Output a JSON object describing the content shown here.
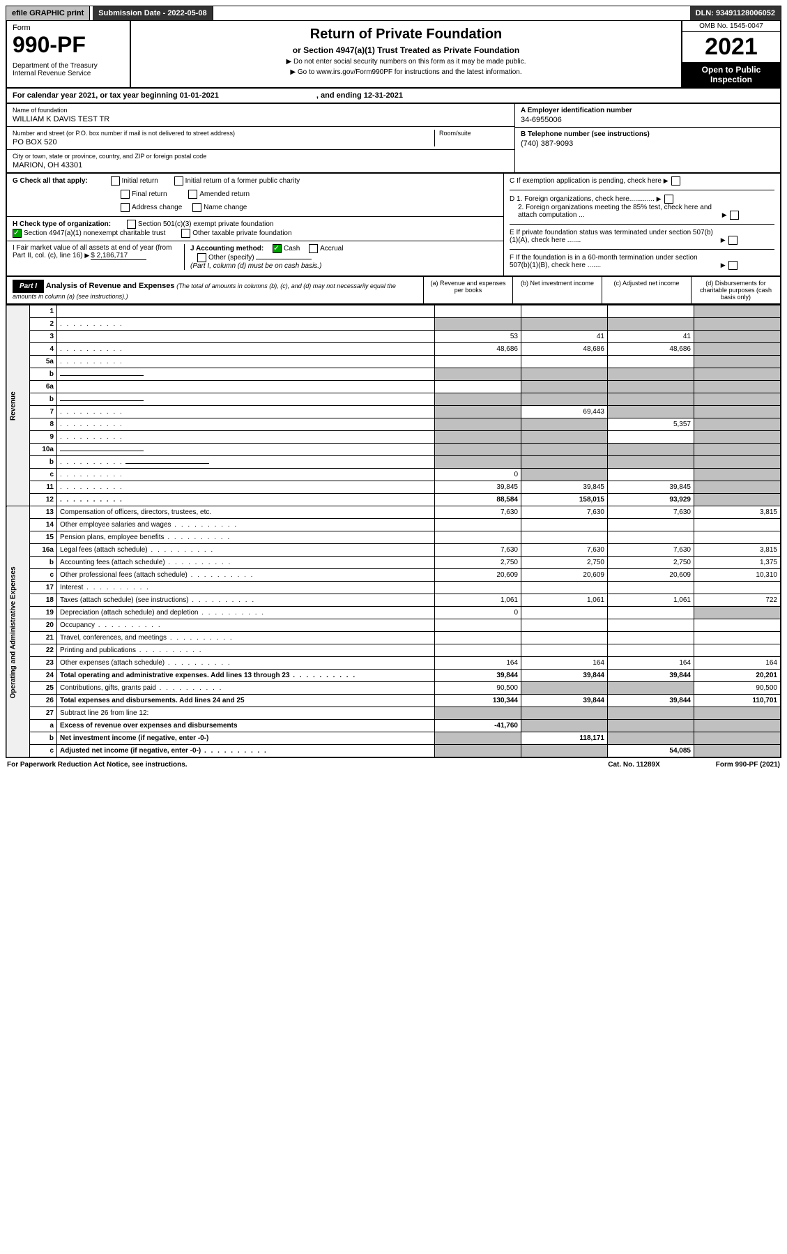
{
  "topbar": {
    "efile": "efile GRAPHIC print",
    "sub": "Submission Date - 2022-05-08",
    "dln": "DLN: 93491128006052"
  },
  "hdr": {
    "form_word": "Form",
    "form_no": "990-PF",
    "dept": "Department of the Treasury",
    "irs": "Internal Revenue Service",
    "title": "Return of Private Foundation",
    "sub": "or Section 4947(a)(1) Trust Treated as Private Foundation",
    "note1": "▶ Do not enter social security numbers on this form as it may be made public.",
    "note2": "▶ Go to www.irs.gov/Form990PF for instructions and the latest information.",
    "omb": "OMB No. 1545-0047",
    "year": "2021",
    "open": "Open to Public Inspection"
  },
  "cal": {
    "pre": "For calendar year 2021, or tax year beginning 01-01-2021",
    "end": ", and ending 12-31-2021"
  },
  "info": {
    "name_lbl": "Name of foundation",
    "name": "WILLIAM K DAVIS TEST TR",
    "addr_lbl": "Number and street (or P.O. box number if mail is not delivered to street address)",
    "room_lbl": "Room/suite",
    "addr": "PO BOX 520",
    "city_lbl": "City or town, state or province, country, and ZIP or foreign postal code",
    "city": "MARION, OH  43301",
    "a_lbl": "A Employer identification number",
    "a": "34-6955006",
    "b_lbl": "B Telephone number (see instructions)",
    "b": "(740) 387-9093",
    "c": "C If exemption application is pending, check here",
    "d1": "D 1. Foreign organizations, check here.............",
    "d2": "2. Foreign organizations meeting the 85% test, check here and attach computation ...",
    "e": "E  If private foundation status was terminated under section 507(b)(1)(A), check here .......",
    "f": "F  If the foundation is in a 60-month termination under section 507(b)(1)(B), check here ......."
  },
  "g": {
    "lbl": "G Check all that apply:",
    "opts": [
      "Initial return",
      "Initial return of a former public charity",
      "Final return",
      "Amended return",
      "Address change",
      "Name change"
    ],
    "h": "H Check type of organization:",
    "h1": "Section 501(c)(3) exempt private foundation",
    "h2": "Section 4947(a)(1) nonexempt charitable trust",
    "h3": "Other taxable private foundation",
    "i": "I Fair market value of all assets at end of year (from Part II, col. (c), line 16)",
    "i_val": "$  2,186,717",
    "j": "J Accounting method:",
    "j1": "Cash",
    "j2": "Accrual",
    "j3": "Other (specify)",
    "j_note": "(Part I, column (d) must be on cash basis.)"
  },
  "part1": {
    "hdr": "Part I",
    "title": "Analysis of Revenue and Expenses",
    "sub": "(The total of amounts in columns (b), (c), and (d) may not necessarily equal the amounts in column (a) (see instructions).)",
    "cols": {
      "a": "(a) Revenue and expenses per books",
      "b": "(b) Net investment income",
      "c": "(c) Adjusted net income",
      "d": "(d) Disbursements for charitable purposes (cash basis only)"
    }
  },
  "sections": {
    "revenue": "Revenue",
    "expenses": "Operating and Administrative Expenses"
  },
  "rows": [
    {
      "s": "r",
      "n": "1",
      "d": "",
      "a": "",
      "b": "",
      "c": "",
      "dg": true
    },
    {
      "s": "r",
      "n": "2",
      "d": "",
      "dots": true,
      "a": "",
      "b": "",
      "c": "",
      "bg": true,
      "cg": true,
      "dg": true,
      "ag": true
    },
    {
      "s": "r",
      "n": "3",
      "d": "",
      "a": "53",
      "b": "41",
      "c": "41",
      "dg": true
    },
    {
      "s": "r",
      "n": "4",
      "d": "",
      "dots": true,
      "a": "48,686",
      "b": "48,686",
      "c": "48,686",
      "dg": true
    },
    {
      "s": "r",
      "n": "5a",
      "d": "",
      "dots": true,
      "a": "",
      "b": "",
      "c": "",
      "dg": true
    },
    {
      "s": "r",
      "n": "b",
      "d": "",
      "inline": true,
      "a": "",
      "b": "",
      "c": "",
      "ag": true,
      "bg": true,
      "cg": true,
      "dg": true
    },
    {
      "s": "r",
      "n": "6a",
      "d": "",
      "a": "",
      "b": "",
      "c": "",
      "bg": true,
      "cg": true,
      "dg": true
    },
    {
      "s": "r",
      "n": "b",
      "d": "",
      "inline": true,
      "a": "",
      "b": "",
      "c": "",
      "ag": true,
      "bg": true,
      "cg": true,
      "dg": true
    },
    {
      "s": "r",
      "n": "7",
      "d": "",
      "dots": true,
      "a": "",
      "b": "69,443",
      "c": "",
      "ag": true,
      "cg": true,
      "dg": true
    },
    {
      "s": "r",
      "n": "8",
      "d": "",
      "dots": true,
      "a": "",
      "b": "",
      "c": "5,357",
      "ag": true,
      "bg": true,
      "dg": true
    },
    {
      "s": "r",
      "n": "9",
      "d": "",
      "dots": true,
      "a": "",
      "b": "",
      "c": "",
      "ag": true,
      "bg": true,
      "dg": true
    },
    {
      "s": "r",
      "n": "10a",
      "d": "",
      "inline": true,
      "a": "",
      "b": "",
      "c": "",
      "ag": true,
      "bg": true,
      "cg": true,
      "dg": true
    },
    {
      "s": "r",
      "n": "b",
      "d": "",
      "dots": true,
      "inline": true,
      "a": "",
      "b": "",
      "c": "",
      "ag": true,
      "bg": true,
      "cg": true,
      "dg": true
    },
    {
      "s": "r",
      "n": "c",
      "d": "",
      "dots": true,
      "a": "0",
      "b": "",
      "c": "",
      "bg": true,
      "dg": true
    },
    {
      "s": "r",
      "n": "11",
      "d": "",
      "dots": true,
      "a": "39,845",
      "b": "39,845",
      "c": "39,845",
      "dg": true
    },
    {
      "s": "r",
      "n": "12",
      "d": "",
      "dots": true,
      "bold": true,
      "a": "88,584",
      "b": "158,015",
      "c": "93,929",
      "dg": true
    },
    {
      "s": "e",
      "n": "13",
      "d": "Compensation of officers, directors, trustees, etc.",
      "a": "7,630",
      "b": "7,630",
      "c": "7,630",
      "dv": "3,815"
    },
    {
      "s": "e",
      "n": "14",
      "d": "Other employee salaries and wages",
      "dots": true,
      "a": "",
      "b": "",
      "c": "",
      "dv": ""
    },
    {
      "s": "e",
      "n": "15",
      "d": "Pension plans, employee benefits",
      "dots": true,
      "a": "",
      "b": "",
      "c": "",
      "dv": ""
    },
    {
      "s": "e",
      "n": "16a",
      "d": "Legal fees (attach schedule)",
      "dots": true,
      "a": "7,630",
      "b": "7,630",
      "c": "7,630",
      "dv": "3,815"
    },
    {
      "s": "e",
      "n": "b",
      "d": "Accounting fees (attach schedule)",
      "dots": true,
      "a": "2,750",
      "b": "2,750",
      "c": "2,750",
      "dv": "1,375"
    },
    {
      "s": "e",
      "n": "c",
      "d": "Other professional fees (attach schedule)",
      "dots": true,
      "a": "20,609",
      "b": "20,609",
      "c": "20,609",
      "dv": "10,310"
    },
    {
      "s": "e",
      "n": "17",
      "d": "Interest",
      "dots": true,
      "a": "",
      "b": "",
      "c": "",
      "dv": ""
    },
    {
      "s": "e",
      "n": "18",
      "d": "Taxes (attach schedule) (see instructions)",
      "dots": true,
      "a": "1,061",
      "b": "1,061",
      "c": "1,061",
      "dv": "722"
    },
    {
      "s": "e",
      "n": "19",
      "d": "Depreciation (attach schedule) and depletion",
      "dots": true,
      "a": "0",
      "b": "",
      "c": "",
      "dv": "",
      "dg": true
    },
    {
      "s": "e",
      "n": "20",
      "d": "Occupancy",
      "dots": true,
      "a": "",
      "b": "",
      "c": "",
      "dv": ""
    },
    {
      "s": "e",
      "n": "21",
      "d": "Travel, conferences, and meetings",
      "dots": true,
      "a": "",
      "b": "",
      "c": "",
      "dv": ""
    },
    {
      "s": "e",
      "n": "22",
      "d": "Printing and publications",
      "dots": true,
      "a": "",
      "b": "",
      "c": "",
      "dv": ""
    },
    {
      "s": "e",
      "n": "23",
      "d": "Other expenses (attach schedule)",
      "dots": true,
      "a": "164",
      "b": "164",
      "c": "164",
      "dv": "164"
    },
    {
      "s": "e",
      "n": "24",
      "d": "Total operating and administrative expenses. Add lines 13 through 23",
      "dots": true,
      "bold": true,
      "a": "39,844",
      "b": "39,844",
      "c": "39,844",
      "dv": "20,201"
    },
    {
      "s": "e",
      "n": "25",
      "d": "Contributions, gifts, grants paid",
      "dots": true,
      "a": "90,500",
      "b": "",
      "c": "",
      "dv": "90,500",
      "bg": true,
      "cg": true
    },
    {
      "s": "e",
      "n": "26",
      "d": "Total expenses and disbursements. Add lines 24 and 25",
      "bold": true,
      "a": "130,344",
      "b": "39,844",
      "c": "39,844",
      "dv": "110,701"
    },
    {
      "s": "e",
      "n": "27",
      "d": "Subtract line 26 from line 12:",
      "a": "",
      "b": "",
      "c": "",
      "dv": "",
      "ag": true,
      "bg": true,
      "cg": true,
      "dg": true
    },
    {
      "s": "e",
      "n": "a",
      "d": "Excess of revenue over expenses and disbursements",
      "bold": true,
      "a": "-41,760",
      "b": "",
      "c": "",
      "dv": "",
      "bg": true,
      "cg": true,
      "dg": true
    },
    {
      "s": "e",
      "n": "b",
      "d": "Net investment income (if negative, enter -0-)",
      "bold": true,
      "a": "",
      "b": "118,171",
      "c": "",
      "dv": "",
      "ag": true,
      "cg": true,
      "dg": true
    },
    {
      "s": "e",
      "n": "c",
      "d": "Adjusted net income (if negative, enter -0-)",
      "dots": true,
      "bold": true,
      "a": "",
      "b": "",
      "c": "54,085",
      "dv": "",
      "ag": true,
      "bg": true,
      "dg": true
    }
  ],
  "foot": {
    "l": "For Paperwork Reduction Act Notice, see instructions.",
    "c": "Cat. No. 11289X",
    "r": "Form 990-PF (2021)"
  }
}
